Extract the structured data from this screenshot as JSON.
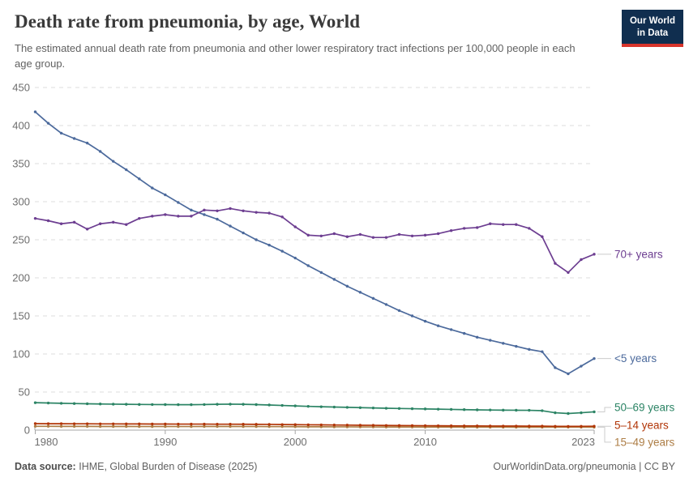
{
  "header": {
    "title": "Death rate from pneumonia, by age, World",
    "subtitle": "The estimated annual death rate from pneumonia and other lower respiratory tract infections per 100,000 people in each age group.",
    "logo": {
      "line1": "Our World",
      "line2": "in Data",
      "bg_color": "#102E4F",
      "accent_color": "#D8352C"
    }
  },
  "footer": {
    "source_label": "Data source:",
    "source_text": "IHME, Global Burden of Disease (2025)",
    "link_text": "OurWorldinData.org/pneumonia | CC BY"
  },
  "chart_data": {
    "type": "line",
    "title": "Death rate from pneumonia, by age, World",
    "xlabel": "",
    "ylabel": "",
    "ylim": [
      0,
      450
    ],
    "yticks": [
      0,
      50,
      100,
      150,
      200,
      250,
      300,
      350,
      400,
      450
    ],
    "xticks": [
      1980,
      1990,
      2000,
      2010,
      2023
    ],
    "grid": "horizontal-dashed",
    "legend_position": "right-end-labels",
    "colors": {
      "grid": "#dedede",
      "axis": "#a6a6a6",
      "tick_label": "#6e6e6e",
      "connector": "#cccccc"
    },
    "x": [
      1980,
      1981,
      1982,
      1983,
      1984,
      1985,
      1986,
      1987,
      1988,
      1989,
      1990,
      1991,
      1992,
      1993,
      1994,
      1995,
      1996,
      1997,
      1998,
      1999,
      2000,
      2001,
      2002,
      2003,
      2004,
      2005,
      2006,
      2007,
      2008,
      2009,
      2010,
      2011,
      2012,
      2013,
      2014,
      2015,
      2016,
      2017,
      2018,
      2019,
      2020,
      2021,
      2022,
      2023
    ],
    "series": [
      {
        "name": "70+ years",
        "color": "#6D3E91",
        "values": [
          278,
          275,
          271,
          273,
          264,
          271,
          273,
          270,
          278,
          281,
          283,
          281,
          281,
          289,
          288,
          291,
          288,
          286,
          285,
          280,
          267,
          256,
          255,
          258,
          254,
          257,
          253,
          253,
          257,
          255,
          256,
          258,
          262,
          265,
          266,
          271,
          270,
          270,
          265,
          254,
          219,
          207,
          224,
          231
        ]
      },
      {
        "name": "<5 years",
        "color": "#4C6A9C",
        "values": [
          418,
          403,
          390,
          383,
          377,
          366,
          353,
          342,
          330,
          318,
          309,
          299,
          289,
          283,
          277,
          268,
          259,
          250,
          243,
          235,
          226,
          216,
          207,
          198,
          189,
          181,
          173,
          165,
          157,
          150,
          143,
          137,
          132,
          127,
          122,
          118,
          114,
          110,
          106,
          103,
          82,
          74,
          84,
          94
        ]
      },
      {
        "name": "50–69 years",
        "color": "#2C8465",
        "values": [
          36,
          35.6,
          35.2,
          34.9,
          34.6,
          34.3,
          34.1,
          33.9,
          33.7,
          33.6,
          33.5,
          33.4,
          33.4,
          33.6,
          33.9,
          34.1,
          33.9,
          33.5,
          33,
          32.4,
          31.8,
          31.2,
          30.7,
          30.3,
          29.9,
          29.5,
          29.1,
          28.7,
          28.4,
          28.1,
          27.8,
          27.5,
          27.2,
          26.9,
          26.6,
          26.4,
          26.2,
          26.1,
          26,
          25.5,
          22.8,
          21.8,
          22.8,
          24
        ]
      },
      {
        "name": "5–14 years",
        "color": "#B13507",
        "values": [
          8.5,
          8.4,
          8.4,
          8.3,
          8.3,
          8.2,
          8.2,
          8.1,
          8.1,
          8,
          8,
          7.9,
          7.9,
          7.9,
          7.8,
          7.8,
          7.7,
          7.6,
          7.5,
          7.3,
          7.2,
          7,
          6.9,
          6.7,
          6.6,
          6.4,
          6.3,
          6.1,
          6,
          5.9,
          5.8,
          5.7,
          5.6,
          5.5,
          5.5,
          5.4,
          5.3,
          5.3,
          5.2,
          5.2,
          5,
          4.9,
          5,
          5.1
        ]
      },
      {
        "name": "15–49 years",
        "color": "#AD7D45",
        "values": [
          5,
          5,
          4.9,
          4.9,
          4.9,
          4.8,
          4.8,
          4.8,
          4.7,
          4.7,
          4.7,
          4.7,
          4.7,
          4.8,
          4.8,
          4.8,
          4.7,
          4.7,
          4.6,
          4.6,
          4.5,
          4.4,
          4.4,
          4.3,
          4.3,
          4.2,
          4.2,
          4.1,
          4.1,
          4.1,
          4,
          4,
          4,
          3.9,
          3.9,
          3.9,
          3.9,
          3.8,
          3.8,
          3.8,
          3.9,
          4,
          3.9,
          3.8
        ]
      }
    ]
  }
}
